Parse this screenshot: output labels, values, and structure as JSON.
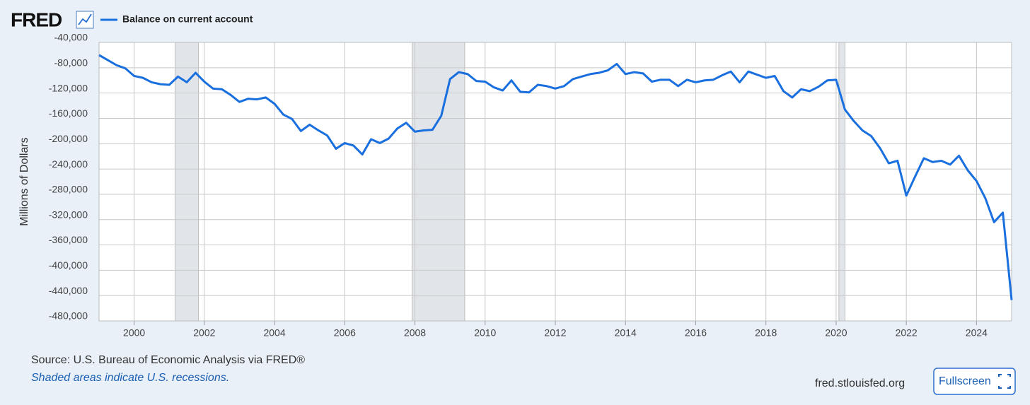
{
  "chart_data": {
    "type": "line",
    "logo": "FRED",
    "y_label": "Millions of Dollars",
    "source": "Source: U.S. Bureau of Economic Analysis via FRED®",
    "note": "Shaded areas indicate U.S. recessions.",
    "website": "fred.stlouisfed.org",
    "fullscreen_button": "Fullscreen",
    "x": [
      1999,
      1999.25,
      1999.5,
      1999.75,
      2000,
      2000.25,
      2000.5,
      2000.75,
      2001,
      2001.25,
      2001.5,
      2001.75,
      2002,
      2002.25,
      2002.5,
      2002.75,
      2003,
      2003.25,
      2003.5,
      2003.75,
      2004,
      2004.25,
      2004.5,
      2004.75,
      2005,
      2005.25,
      2005.5,
      2005.75,
      2006,
      2006.25,
      2006.5,
      2006.75,
      2007,
      2007.25,
      2007.5,
      2007.75,
      2008,
      2008.25,
      2008.5,
      2008.75,
      2009,
      2009.25,
      2009.5,
      2009.75,
      2010,
      2010.25,
      2010.5,
      2010.75,
      2011,
      2011.25,
      2011.5,
      2011.75,
      2012,
      2012.25,
      2012.5,
      2012.75,
      2013,
      2013.25,
      2013.5,
      2013.75,
      2014,
      2014.25,
      2014.5,
      2014.75,
      2015,
      2015.25,
      2015.5,
      2015.75,
      2016,
      2016.25,
      2016.5,
      2016.75,
      2017,
      2017.25,
      2017.5,
      2017.75,
      2018,
      2018.25,
      2018.5,
      2018.75,
      2019,
      2019.25,
      2019.5,
      2019.75,
      2020,
      2020.25,
      2020.5,
      2020.75,
      2021,
      2021.25,
      2021.5,
      2021.75,
      2022,
      2022.25,
      2022.5,
      2022.75,
      2023,
      2023.25,
      2023.5,
      2023.75,
      2024,
      2024.25,
      2024.5,
      2024.75,
      2025
    ],
    "series": [
      {
        "name": "Balance on current account",
        "color": "#1a6fdf",
        "values": [
          -60000,
          -68000,
          -76000,
          -81000,
          -93000,
          -96000,
          -103000,
          -106000,
          -107000,
          -94000,
          -103000,
          -88000,
          -102000,
          -113000,
          -114000,
          -123000,
          -134000,
          -129000,
          -130000,
          -127000,
          -137000,
          -154000,
          -161000,
          -180000,
          -170000,
          -179000,
          -187000,
          -208000,
          -199000,
          -203000,
          -217000,
          -193000,
          -199000,
          -192000,
          -176000,
          -167000,
          -181000,
          -179000,
          -178000,
          -156000,
          -98000,
          -87000,
          -90000,
          -101000,
          -102000,
          -111000,
          -116000,
          -100000,
          -118000,
          -119000,
          -107000,
          -109000,
          -113000,
          -109000,
          -98000,
          -94000,
          -90000,
          -88000,
          -84000,
          -74000,
          -90000,
          -87000,
          -89000,
          -102000,
          -99000,
          -99000,
          -109000,
          -99000,
          -103000,
          -100000,
          -99000,
          -92000,
          -86000,
          -103000,
          -86000,
          -91000,
          -96000,
          -93000,
          -117000,
          -127000,
          -114000,
          -117000,
          -110000,
          -100000,
          -99000,
          -146000,
          -164000,
          -179000,
          -188000,
          -207000,
          -231000,
          -227000,
          -282000,
          -252000,
          -223000,
          -229000,
          -227000,
          -233000,
          -219000,
          -242000,
          -259000,
          -286000,
          -324000,
          -309000,
          -447000
        ]
      }
    ],
    "recessions": [
      [
        2001.17,
        2001.83
      ],
      [
        2007.92,
        2009.42
      ],
      [
        2020.08,
        2020.25
      ]
    ],
    "recession_color": "#e1e5ea",
    "xlim": [
      1999,
      2025
    ],
    "xticks": [
      2000,
      2002,
      2004,
      2006,
      2008,
      2010,
      2012,
      2014,
      2016,
      2018,
      2020,
      2022,
      2024
    ],
    "ylim": [
      -480000,
      -40000
    ],
    "yticks": [
      {
        "value": -40000,
        "label": "-40,000"
      },
      {
        "value": -80000,
        "label": "-80,000"
      },
      {
        "value": -120000,
        "label": "-120,000"
      },
      {
        "value": -160000,
        "label": "-160,000"
      },
      {
        "value": -200000,
        "label": "-200,000"
      },
      {
        "value": -240000,
        "label": "-240,000"
      },
      {
        "value": -280000,
        "label": "-280,000"
      },
      {
        "value": -320000,
        "label": "-320,000"
      },
      {
        "value": -360000,
        "label": "-360,000"
      },
      {
        "value": -400000,
        "label": "-400,000"
      },
      {
        "value": -440000,
        "label": "-440,000"
      },
      {
        "value": -480000,
        "label": "-480,000"
      }
    ],
    "grid": true
  }
}
